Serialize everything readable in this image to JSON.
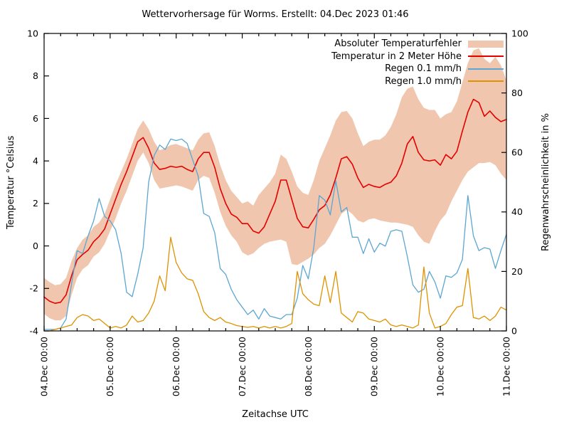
{
  "title": "Wettervorhersage für Worms. Erstellt: 04.Dec 2023 01:46",
  "axes": {
    "left": {
      "label": "Temperatur °Celsius",
      "ticks": [
        10,
        8,
        6,
        4,
        2,
        0,
        -2,
        -4
      ]
    },
    "right": {
      "label": "Regenwahrscheinlichkeit in %",
      "ticks": [
        100,
        80,
        60,
        40,
        20,
        0
      ]
    },
    "x": {
      "label": "Zeitachse UTC",
      "tick_labels": [
        "04.Dec 00:00",
        "05.Dec 00:00",
        "06.Dec 00:00",
        "07.Dec 00:00",
        "08.Dec 00:00",
        "09.Dec 00:00",
        "10.Dec 00:00",
        "11.Dec 00:00"
      ]
    }
  },
  "legend": {
    "items": [
      {
        "label": "Absoluter Temperaturfehler",
        "swatch": "band",
        "color_key": "error_band"
      },
      {
        "label": "Temperatur in 2 Meter Höhe",
        "swatch": "line",
        "color_key": "temperature"
      },
      {
        "label": "Regen 0.1 mm/h",
        "swatch": "line",
        "color_key": "rain01"
      },
      {
        "label": "Regen 1.0 mm/h",
        "swatch": "line",
        "color_key": "rain10"
      }
    ]
  },
  "colors": {
    "temperature": "#e50000",
    "rain01": "#5ca6d2",
    "rain10": "#df9200",
    "error_band": "#f0c7ae",
    "axis": "#000000"
  },
  "chart_data": {
    "type": "line",
    "title": "Wettervorhersage für Worms. Erstellt: 04.Dec 2023 01:46",
    "xlabel": "Zeitachse UTC",
    "ylabel_left": "Temperatur °Celsius",
    "ylabel_right": "Regenwahrscheinlichkeit in %",
    "x_range_hours": [
      0,
      168
    ],
    "x_step_hours": 2,
    "x_major_tick_hours": 24,
    "x_minor_tick_hours": 6,
    "temp_range": [
      -4,
      10
    ],
    "rain_range": [
      0,
      100
    ],
    "grid": false,
    "legend_position": "top-right-inside",
    "series": [
      {
        "name": "Absoluter Temperaturfehler",
        "axis": "temp",
        "style": "band",
        "color_key": "error_band",
        "upper": [
          -1.5,
          -1.7,
          -1.85,
          -1.8,
          -1.5,
          -0.7,
          -0.1,
          0.3,
          0.5,
          0.9,
          1.1,
          1.5,
          2.2,
          2.9,
          3.5,
          4.1,
          4.8,
          5.5,
          5.9,
          5.5,
          4.9,
          4.5,
          4.6,
          4.75,
          4.8,
          4.7,
          4.6,
          4.5,
          5.0,
          5.3,
          5.35,
          4.7,
          3.8,
          3.1,
          2.6,
          2.3,
          2.0,
          2.1,
          1.9,
          2.4,
          2.7,
          3.0,
          3.4,
          4.3,
          4.1,
          3.5,
          2.8,
          2.5,
          2.4,
          3.1,
          4.0,
          4.6,
          5.2,
          5.9,
          6.3,
          6.35,
          6.0,
          5.3,
          4.7,
          4.9,
          5.0,
          5.0,
          5.2,
          5.6,
          6.2,
          7.0,
          7.4,
          7.5,
          6.9,
          6.5,
          6.4,
          6.4,
          6.0,
          6.2,
          6.3,
          6.8,
          7.7,
          8.6,
          9.2,
          9.3,
          8.8,
          8.6,
          8.9,
          8.5,
          7.8
        ],
        "lower": [
          -3.2,
          -3.4,
          -3.5,
          -3.5,
          -3.3,
          -2.3,
          -1.5,
          -1.1,
          -0.9,
          -0.5,
          -0.3,
          0.1,
          0.7,
          1.3,
          2.0,
          2.6,
          3.3,
          4.0,
          4.4,
          3.9,
          3.1,
          2.7,
          2.75,
          2.8,
          2.85,
          2.8,
          2.7,
          2.6,
          3.1,
          3.3,
          3.2,
          2.5,
          1.6,
          0.95,
          0.5,
          0.2,
          -0.3,
          -0.45,
          -0.35,
          -0.1,
          0.1,
          0.2,
          0.25,
          0.3,
          0.2,
          -0.85,
          -0.9,
          -0.75,
          -0.6,
          -0.4,
          -0.1,
          0.1,
          0.5,
          1.0,
          1.5,
          1.7,
          1.5,
          1.2,
          1.1,
          1.25,
          1.3,
          1.2,
          1.15,
          1.1,
          1.1,
          1.05,
          1.0,
          0.9,
          0.5,
          0.2,
          0.1,
          0.7,
          1.2,
          1.5,
          2.1,
          2.6,
          3.1,
          3.5,
          3.7,
          3.9,
          3.9,
          3.95,
          3.8,
          3.4,
          3.1
        ]
      },
      {
        "name": "Temperatur in 2 Meter Höhe",
        "axis": "temp",
        "style": "line",
        "color_key": "temperature",
        "values": [
          -2.4,
          -2.6,
          -2.7,
          -2.65,
          -2.3,
          -1.4,
          -0.65,
          -0.4,
          -0.2,
          0.2,
          0.45,
          0.8,
          1.5,
          2.2,
          2.9,
          3.5,
          4.2,
          4.9,
          5.1,
          4.6,
          3.9,
          3.6,
          3.65,
          3.75,
          3.7,
          3.75,
          3.6,
          3.5,
          4.1,
          4.4,
          4.4,
          3.7,
          2.7,
          2.0,
          1.5,
          1.35,
          1.05,
          1.05,
          0.7,
          0.6,
          0.9,
          1.5,
          2.1,
          3.1,
          3.1,
          2.2,
          1.3,
          0.9,
          0.85,
          1.25,
          1.7,
          1.9,
          2.4,
          3.2,
          4.1,
          4.2,
          3.85,
          3.2,
          2.75,
          2.9,
          2.8,
          2.75,
          2.9,
          3.0,
          3.3,
          3.9,
          4.8,
          5.15,
          4.4,
          4.05,
          4.0,
          4.05,
          3.8,
          4.3,
          4.1,
          4.45,
          5.4,
          6.3,
          6.9,
          6.75,
          6.1,
          6.35,
          6.05,
          5.85,
          5.95
        ]
      },
      {
        "name": "Regen 0.1 mm/h",
        "axis": "rain",
        "style": "line",
        "color_key": "rain01",
        "values": [
          0.5,
          0.5,
          0.5,
          1,
          4,
          16,
          27,
          26,
          32,
          37,
          44.5,
          38.5,
          37,
          34,
          26,
          13,
          11.5,
          19,
          28,
          50,
          59,
          62.5,
          61,
          64.5,
          64,
          64.5,
          63,
          57.5,
          52,
          39.5,
          38.5,
          33,
          21,
          19,
          14,
          10.5,
          8,
          5.5,
          7,
          4,
          7.5,
          5,
          4.5,
          4,
          5.5,
          5.5,
          11,
          22,
          17.5,
          28,
          45.5,
          44,
          39,
          50.5,
          40,
          41.5,
          31.5,
          31.5,
          26,
          31,
          26.5,
          29.5,
          28.5,
          33.5,
          34,
          33.5,
          25,
          15.5,
          13,
          14,
          20,
          16.5,
          11,
          18.5,
          18,
          19.5,
          24,
          45.5,
          32,
          27,
          28,
          27.5,
          21,
          27,
          32.5
        ]
      },
      {
        "name": "Regen 1.0 mm/h",
        "axis": "rain",
        "style": "line",
        "color_key": "rain10",
        "values": [
          0,
          0,
          0.5,
          1,
          1.5,
          2,
          4.5,
          5.5,
          5,
          3.5,
          4,
          2.5,
          1,
          1.5,
          1,
          2,
          5,
          3,
          3.5,
          6,
          10,
          18.5,
          13.5,
          31.5,
          23,
          19.5,
          17.5,
          17,
          12.5,
          6.5,
          4.5,
          3.5,
          4.5,
          3,
          2.5,
          1.8,
          1.5,
          1.2,
          1.5,
          1,
          1.5,
          1,
          1.5,
          1,
          1.5,
          2.5,
          20,
          12.5,
          10.5,
          9,
          8.5,
          18.5,
          9.5,
          20,
          6,
          4.5,
          3,
          6.5,
          6,
          4,
          3.5,
          3,
          4,
          2,
          1.5,
          2,
          1.5,
          1,
          2,
          21.5,
          6,
          1,
          1.5,
          2.5,
          5.5,
          8,
          8.5,
          21,
          4.5,
          4,
          5,
          3.5,
          5,
          8,
          7
        ]
      }
    ]
  }
}
